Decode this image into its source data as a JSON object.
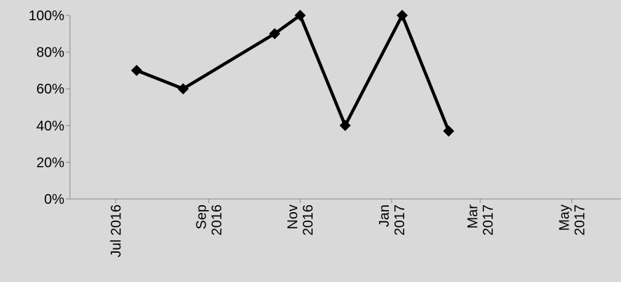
{
  "chart_data": {
    "type": "line",
    "title": "",
    "xlabel": "",
    "ylabel": "",
    "x_ticks": [
      {
        "date": "2016-07-01",
        "label_lines": [
          "Jul 2016"
        ]
      },
      {
        "date": "2016-09-01",
        "label_lines": [
          "Sep",
          "2016"
        ]
      },
      {
        "date": "2016-11-01",
        "label_lines": [
          "Nov",
          "2016"
        ]
      },
      {
        "date": "2017-01-01",
        "label_lines": [
          "Jan",
          "2017"
        ]
      },
      {
        "date": "2017-03-01",
        "label_lines": [
          "Mar",
          "2017"
        ]
      },
      {
        "date": "2017-05-01",
        "label_lines": [
          "May",
          "2017"
        ]
      }
    ],
    "xlim": [
      "2016-06-01",
      "2017-07-01"
    ],
    "y_ticks": [
      "0%",
      "20%",
      "40%",
      "60%",
      "80%",
      "100%"
    ],
    "ylim": [
      0,
      100
    ],
    "y_unit": "%",
    "grid": false,
    "legend": "none",
    "series": [
      {
        "color": "#000000",
        "marker": "diamond",
        "points": [
          {
            "x": "2016-07-15",
            "y": 70
          },
          {
            "x": "2016-08-15",
            "y": 60
          },
          {
            "x": "2016-10-15",
            "y": 90
          },
          {
            "x": "2016-11-01",
            "y": 100
          },
          {
            "x": "2016-12-01",
            "y": 40
          },
          {
            "x": "2017-01-08",
            "y": 100
          },
          {
            "x": "2017-02-08",
            "y": 37
          }
        ]
      }
    ]
  }
}
